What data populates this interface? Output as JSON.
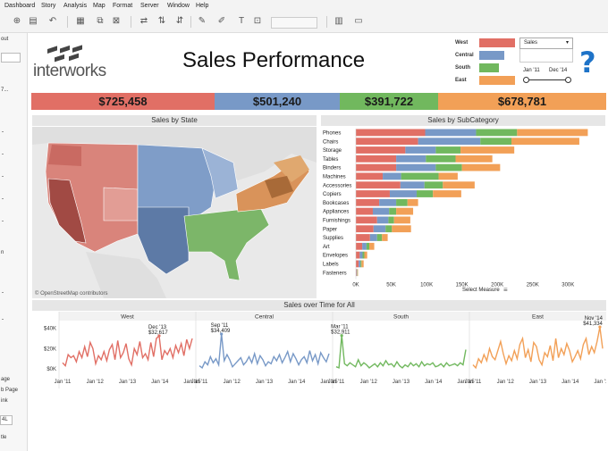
{
  "menu": [
    "Dashboard",
    "Story",
    "Analysis",
    "Map",
    "Format",
    "Server",
    "Window",
    "Help"
  ],
  "toolbar_icons": [
    "new-data-source-icon",
    "save-icon",
    "undo-icon",
    "redo-icon",
    "new-worksheet-icon",
    "clear-sheet-icon",
    "swap-icon",
    "sort-ascending-icon",
    "sort-descending-icon",
    "highlight-icon",
    "group-icon",
    "show-labels-icon",
    "fix-axes-icon",
    "show-me-icon",
    "presentation-icon"
  ],
  "sidebar": {
    "labels": [
      "out",
      "7...",
      "n",
      "age",
      "b Page",
      "ink",
      "4L",
      "tle"
    ]
  },
  "header": {
    "logo": "interworks",
    "title": "Sales Performance"
  },
  "legend": {
    "items": [
      {
        "label": "West",
        "color": "#e16f65"
      },
      {
        "label": "Central",
        "color": "#7899c7"
      },
      {
        "label": "South",
        "color": "#71b85e"
      },
      {
        "label": "East",
        "color": "#f2a057"
      }
    ]
  },
  "measure_select": {
    "value": "Sales"
  },
  "date_range": {
    "start": "Jan '11",
    "end": "Dec '14"
  },
  "kpis": [
    {
      "value": "$725,458",
      "color": "#e16f65"
    },
    {
      "value": "$501,240",
      "color": "#7899c7"
    },
    {
      "value": "$391,722",
      "color": "#71b85e"
    },
    {
      "value": "$678,781",
      "color": "#f2a057"
    }
  ],
  "map_panel": {
    "title": "Sales by State",
    "attribution": "© OpenStreetMap contributors"
  },
  "subcategory_panel": {
    "title": "Sales by SubCategory",
    "footer": "Select Measure"
  },
  "time_panel": {
    "title": "Sales over Time for All"
  },
  "chart_data": [
    {
      "type": "bar",
      "title": "Sales by SubCategory",
      "categories": [
        "Phones",
        "Chairs",
        "Storage",
        "Tables",
        "Binders",
        "Machines",
        "Accessories",
        "Copiers",
        "Bookcases",
        "Appliances",
        "Furnishings",
        "Paper",
        "Supplies",
        "Art",
        "Envelopes",
        "Labels",
        "Fasteners"
      ],
      "series": [
        {
          "name": "West",
          "values": [
            98000,
            88000,
            70000,
            57000,
            57000,
            38000,
            63000,
            48000,
            33000,
            24000,
            30000,
            25000,
            20000,
            9000,
            5500,
            4000,
            1000
          ]
        },
        {
          "name": "Central",
          "values": [
            72000,
            88000,
            43000,
            42000,
            56000,
            26000,
            34000,
            38000,
            24000,
            23000,
            16000,
            17000,
            10000,
            6000,
            4000,
            2500,
            700
          ]
        },
        {
          "name": "South",
          "values": [
            58000,
            44000,
            35000,
            42000,
            37000,
            53000,
            26000,
            23000,
            16000,
            10000,
            8000,
            9000,
            7000,
            4000,
            2500,
            1500,
            500
          ]
        },
        {
          "name": "East",
          "values": [
            100000,
            96000,
            76000,
            52000,
            54000,
            27000,
            45000,
            40000,
            15000,
            24000,
            23000,
            27000,
            8000,
            7000,
            4000,
            3000,
            800
          ]
        }
      ],
      "x_ticks": [
        "0K",
        "50K",
        "100K",
        "150K",
        "200K",
        "250K",
        "300K"
      ],
      "xlim": [
        0,
        330000
      ]
    },
    {
      "type": "line",
      "title": "Sales over Time for All",
      "y_ticks": [
        "$40K",
        "$20K",
        "$0K"
      ],
      "ylim": [
        0,
        45000
      ],
      "x_ticks": [
        "Jan '11",
        "Jan '12",
        "Jan '13",
        "Jan '14",
        "Jan '15"
      ],
      "series": [
        {
          "name": "West",
          "color": "#e16f65",
          "annotation": {
            "label": "Dec '13",
            "value": "$32,617"
          },
          "values": [
            6000,
            3000,
            14000,
            11000,
            13000,
            7000,
            17000,
            11000,
            22000,
            12000,
            26000,
            20000,
            5000,
            13000,
            9000,
            17000,
            8000,
            19000,
            24000,
            9000,
            28000,
            11000,
            16000,
            25000,
            10000,
            4000,
            20000,
            14000,
            27000,
            11000,
            15000,
            9000,
            26000,
            12000,
            30000,
            32617,
            9000,
            18000,
            14000,
            20000,
            11000,
            23000,
            16000,
            25000,
            13000,
            29000,
            20000,
            30000
          ]
        },
        {
          "name": "Central",
          "color": "#7899c7",
          "annotation": {
            "label": "Sep '11",
            "value": "$34,409"
          },
          "values": [
            3000,
            1000,
            7000,
            4000,
            12000,
            6000,
            10000,
            4000,
            34409,
            8000,
            14000,
            9000,
            2000,
            5000,
            8000,
            11000,
            4000,
            7000,
            12000,
            6000,
            15000,
            5000,
            13000,
            9000,
            3000,
            7000,
            5000,
            12000,
            8000,
            14000,
            6000,
            11000,
            17000,
            7000,
            15000,
            10000,
            4000,
            9000,
            12000,
            6000,
            18000,
            8000,
            14000,
            5000,
            16000,
            11000,
            7000,
            15000
          ]
        },
        {
          "name": "South",
          "color": "#71b85e",
          "annotation": {
            "label": "Mar '11",
            "value": "$32,911"
          },
          "values": [
            2000,
            1000,
            32911,
            5000,
            3000,
            6000,
            4000,
            2000,
            9000,
            3000,
            6000,
            4000,
            1000,
            3000,
            5000,
            2000,
            6000,
            3000,
            8000,
            4000,
            5000,
            2000,
            7000,
            3000,
            1000,
            4000,
            2000,
            6000,
            3000,
            5000,
            2000,
            7000,
            3000,
            5000,
            4000,
            6000,
            2000,
            3000,
            5000,
            2000,
            6000,
            3000,
            4000,
            5000,
            3000,
            6000,
            4000,
            19000
          ]
        },
        {
          "name": "East",
          "color": "#f2a057",
          "annotation": {
            "label": "Nov '14",
            "value": "$41,334"
          },
          "values": [
            4000,
            1000,
            10000,
            6000,
            14000,
            8000,
            20000,
            12000,
            9000,
            18000,
            27000,
            15000,
            5000,
            13000,
            8000,
            18000,
            10000,
            24000,
            30000,
            11000,
            19000,
            7000,
            26000,
            22000,
            9000,
            4000,
            16000,
            12000,
            23000,
            8000,
            30000,
            11000,
            20000,
            14000,
            25000,
            18000,
            7000,
            12000,
            18000,
            10000,
            24000,
            30000,
            14000,
            22000,
            16000,
            27000,
            41334,
            20000
          ]
        }
      ]
    }
  ]
}
